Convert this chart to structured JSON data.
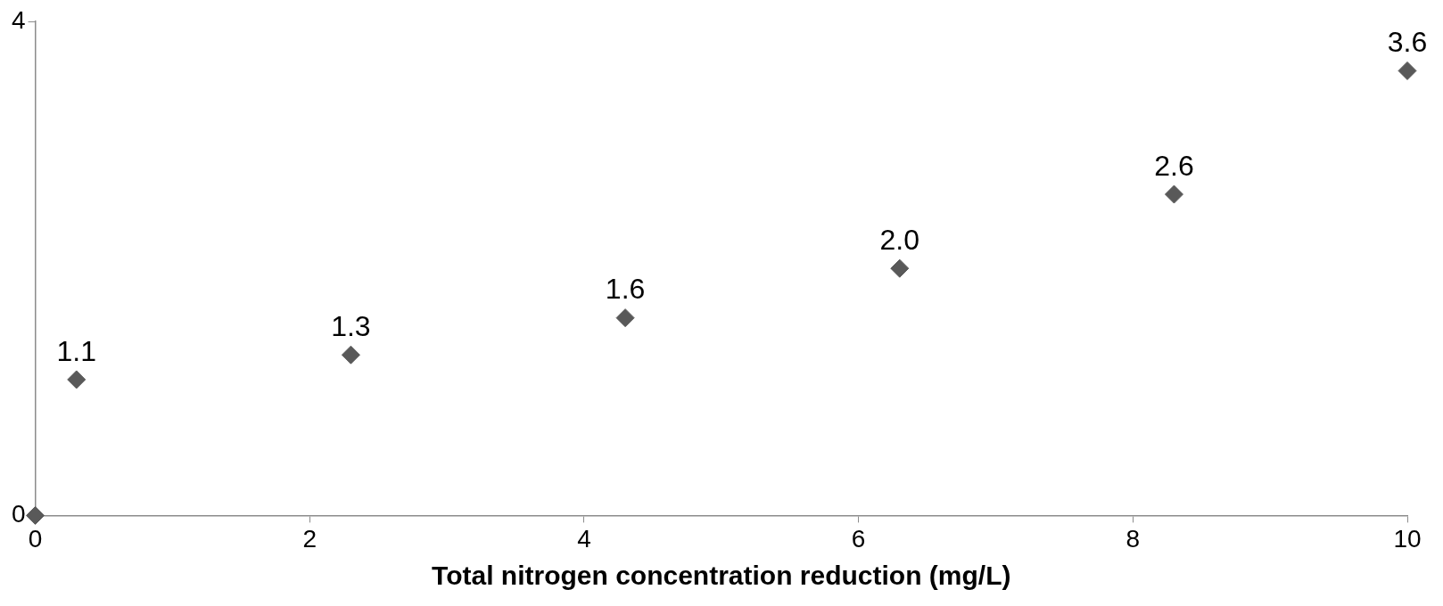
{
  "chart_data": {
    "type": "scatter",
    "xlabel": "Total nitrogen concentration reduction (mg/L)",
    "x": [
      0,
      0.3,
      2.3,
      4.3,
      6.3,
      8.3,
      10
    ],
    "values": [
      0,
      1.1,
      1.3,
      1.6,
      2.0,
      2.6,
      3.6
    ],
    "value_labels": [
      null,
      "1.1",
      "1.3",
      "1.6",
      "2.0",
      "2.6",
      "3.6"
    ],
    "color": "#595959",
    "marker": "diamond",
    "xlim": [
      0,
      10
    ],
    "xticks": [
      0,
      2,
      4,
      6,
      8,
      10
    ],
    "ylim": [
      0,
      4
    ],
    "yticks": [
      0,
      4
    ],
    "legend": false
  }
}
